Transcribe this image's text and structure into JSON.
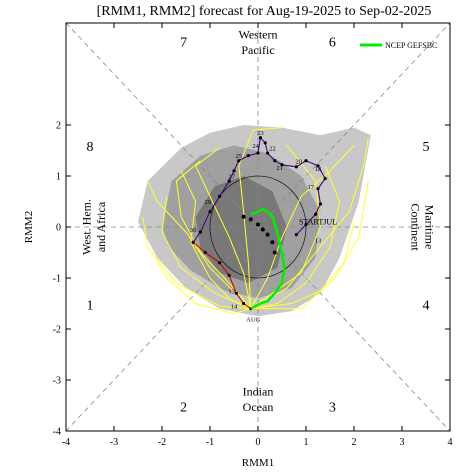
{
  "chart_data": {
    "type": "line",
    "title": "[RMM1, RMM2] forecast for Aug-19-2025 to Sep-02-2025",
    "xlabel": "RMM1",
    "ylabel": "RMM2",
    "xlim": [
      -4,
      4
    ],
    "ylim": [
      -4,
      4
    ],
    "x_ticks": [
      -4,
      -3,
      -2,
      -1,
      0,
      1,
      2,
      3,
      4
    ],
    "y_ticks": [
      -4,
      -3,
      -2,
      -1,
      0,
      1,
      2
    ],
    "grid": false,
    "legend": {
      "position": "top-right",
      "entries": [
        "NCEP GEFSBC"
      ]
    },
    "colors": {
      "outer_shade": "#c8c8c8",
      "middle_shade": "#a0a0a0",
      "inner_shade": "#787878",
      "ensemble": "#ffff33",
      "mean": "#00ee00",
      "observed_july": "#4b0082",
      "observed_august": "#cc0000",
      "dashed": "#808080"
    },
    "region_labels": [
      {
        "text": "Western",
        "x": 0,
        "y": 3.75
      },
      {
        "text": "Pacific",
        "x": 0,
        "y": 3.45
      },
      {
        "text": "Indian",
        "x": 0,
        "y": -3.25
      },
      {
        "text": "Ocean",
        "x": 0,
        "y": -3.55
      },
      {
        "text": "West. Hem.",
        "x": -3.55,
        "y": 0,
        "rotate": -90
      },
      {
        "text": "and Africa",
        "x": -3.25,
        "y": 0,
        "rotate": -90
      },
      {
        "text": "Maritime",
        "x": 3.55,
        "y": 0,
        "rotate": 90
      },
      {
        "text": "Continent",
        "x": 3.25,
        "y": 0,
        "rotate": 90
      }
    ],
    "phase_labels": [
      {
        "text": "1",
        "x": -3.5,
        "y": -1.55
      },
      {
        "text": "2",
        "x": -1.55,
        "y": -3.55
      },
      {
        "text": "3",
        "x": 1.55,
        "y": -3.55
      },
      {
        "text": "4",
        "x": 3.5,
        "y": -1.55
      },
      {
        "text": "5",
        "x": 3.5,
        "y": 1.55
      },
      {
        "text": "6",
        "x": 1.55,
        "y": 3.6
      },
      {
        "text": "7",
        "x": -1.55,
        "y": 3.6
      },
      {
        "text": "8",
        "x": -3.5,
        "y": 1.55
      }
    ],
    "shading": {
      "outer": [
        [
          -2.5,
          0.1
        ],
        [
          -2.3,
          0.9
        ],
        [
          -1.6,
          1.55
        ],
        [
          -1.0,
          1.85
        ],
        [
          -0.3,
          2.0
        ],
        [
          0.5,
          1.95
        ],
        [
          1.3,
          1.8
        ],
        [
          2.0,
          1.95
        ],
        [
          2.35,
          1.8
        ],
        [
          2.1,
          0.5
        ],
        [
          1.7,
          -0.6
        ],
        [
          1.3,
          -1.3
        ],
        [
          0.7,
          -1.65
        ],
        [
          0.0,
          -1.75
        ],
        [
          -0.8,
          -1.6
        ],
        [
          -1.5,
          -1.2
        ],
        [
          -2.1,
          -0.6
        ]
      ],
      "middle": [
        [
          -2.0,
          0.0
        ],
        [
          -1.8,
          0.9
        ],
        [
          -1.2,
          1.4
        ],
        [
          -0.5,
          1.6
        ],
        [
          0.2,
          1.45
        ],
        [
          0.9,
          1.0
        ],
        [
          1.3,
          0.3
        ],
        [
          1.2,
          -0.6
        ],
        [
          0.7,
          -1.2
        ],
        [
          0.0,
          -1.4
        ],
        [
          -0.7,
          -1.25
        ],
        [
          -1.4,
          -0.85
        ],
        [
          -1.85,
          -0.4
        ]
      ],
      "inner": [
        [
          -1.3,
          0.2
        ],
        [
          -0.9,
          0.8
        ],
        [
          -0.3,
          1.0
        ],
        [
          0.3,
          0.7
        ],
        [
          0.6,
          0.0
        ],
        [
          0.4,
          -0.8
        ],
        [
          -0.2,
          -1.1
        ],
        [
          -0.8,
          -0.9
        ],
        [
          -1.2,
          -0.4
        ]
      ]
    },
    "observed": {
      "july": {
        "points": [
          [
            0.8,
            -0.15
          ],
          [
            1.0,
            0.05
          ],
          [
            1.2,
            0.25
          ],
          [
            1.3,
            0.45
          ],
          [
            1.25,
            0.75
          ],
          [
            1.4,
            0.95
          ],
          [
            1.25,
            1.2
          ],
          [
            1.0,
            1.3
          ],
          [
            0.8,
            1.18
          ],
          [
            0.5,
            1.22
          ],
          [
            0.35,
            1.3
          ],
          [
            0.2,
            1.45
          ],
          [
            0.15,
            1.65
          ],
          [
            0.05,
            1.75
          ],
          [
            0.0,
            1.45
          ],
          [
            -0.2,
            1.4
          ],
          [
            -0.4,
            1.3
          ],
          [
            -0.5,
            1.1
          ],
          [
            -0.6,
            0.9
          ],
          [
            -0.8,
            0.6
          ],
          [
            -1.0,
            0.3
          ],
          [
            -1.2,
            -0.1
          ],
          [
            -1.35,
            -0.3
          ]
        ],
        "labels": [
          {
            "text": "STARTJUL",
            "x": 1.25,
            "y": 0.05
          },
          {
            "text": "13",
            "x": 1.25,
            "y": -0.3
          },
          {
            "text": "18",
            "x": 1.25,
            "y": 1.1
          },
          {
            "text": "17",
            "x": 1.1,
            "y": 0.75
          },
          {
            "text": "20",
            "x": 0.85,
            "y": 1.25
          },
          {
            "text": "21",
            "x": 0.45,
            "y": 1.12
          },
          {
            "text": "22",
            "x": 0.3,
            "y": 1.5
          },
          {
            "text": "23",
            "x": 0.05,
            "y": 1.8
          },
          {
            "text": "24",
            "x": -0.05,
            "y": 1.55
          },
          {
            "text": "25",
            "x": -0.4,
            "y": 1.35
          },
          {
            "text": "27",
            "x": -0.55,
            "y": 0.95
          },
          {
            "text": "29",
            "x": -1.05,
            "y": 0.45
          },
          {
            "text": "30",
            "x": -1.35,
            "y": -0.1
          }
        ]
      },
      "august": {
        "points": [
          [
            -1.35,
            -0.3
          ],
          [
            -1.1,
            -0.5
          ],
          [
            -0.8,
            -0.7
          ],
          [
            -0.6,
            -0.95
          ],
          [
            -0.45,
            -1.3
          ],
          [
            -0.3,
            -1.5
          ],
          [
            -0.15,
            -1.6
          ]
        ],
        "labels": [
          {
            "text": "13",
            "x": -0.55,
            "y": -1.3
          },
          {
            "text": "14",
            "x": -0.5,
            "y": -1.6
          },
          {
            "text": "AUG",
            "x": -0.1,
            "y": -1.85
          }
        ]
      }
    },
    "series": [
      {
        "name": "NCEP GEFSBC",
        "x": [
          -0.15,
          0.05,
          0.2,
          0.35,
          0.5,
          0.55,
          0.5,
          0.45,
          0.4,
          0.35,
          0.3,
          0.2,
          0.1,
          0.0,
          -0.15
        ],
        "y": [
          -1.6,
          -1.5,
          -1.45,
          -1.3,
          -1.1,
          -0.8,
          -0.5,
          -0.3,
          -0.1,
          0.05,
          0.2,
          0.3,
          0.35,
          0.3,
          0.25
        ]
      }
    ],
    "ensemble_paths": [
      [
        [
          -0.15,
          -1.6
        ],
        [
          -0.6,
          -1.1
        ],
        [
          -1.2,
          -0.5
        ],
        [
          -1.6,
          0.2
        ],
        [
          -1.7,
          0.9
        ],
        [
          -1.2,
          1.3
        ]
      ],
      [
        [
          -0.15,
          -1.6
        ],
        [
          -0.9,
          -1.3
        ],
        [
          -1.6,
          -0.8
        ],
        [
          -2.0,
          -0.1
        ],
        [
          -1.9,
          0.6
        ]
      ],
      [
        [
          -0.15,
          -1.6
        ],
        [
          -0.3,
          -0.9
        ],
        [
          -0.6,
          -0.2
        ],
        [
          -1.0,
          0.6
        ],
        [
          -1.3,
          1.2
        ],
        [
          -0.8,
          1.55
        ]
      ],
      [
        [
          -0.15,
          -1.6
        ],
        [
          0.4,
          -1.5
        ],
        [
          1.0,
          -1.1
        ],
        [
          1.5,
          -0.4
        ],
        [
          1.7,
          0.5
        ],
        [
          1.4,
          1.2
        ]
      ],
      [
        [
          -0.15,
          -1.6
        ],
        [
          0.6,
          -1.2
        ],
        [
          1.2,
          -0.5
        ],
        [
          1.9,
          0.3
        ],
        [
          2.2,
          1.2
        ],
        [
          2.3,
          1.75
        ]
      ],
      [
        [
          -0.15,
          -1.6
        ],
        [
          -0.8,
          -1.55
        ],
        [
          -1.7,
          -1.1
        ],
        [
          -2.3,
          -0.4
        ],
        [
          -2.4,
          0.2
        ]
      ],
      [
        [
          -0.15,
          -1.6
        ],
        [
          0.2,
          -1.0
        ],
        [
          0.5,
          -0.2
        ],
        [
          0.9,
          0.6
        ],
        [
          1.5,
          1.1
        ],
        [
          2.0,
          1.6
        ]
      ],
      [
        [
          -0.15,
          -1.6
        ],
        [
          -0.5,
          -1.7
        ],
        [
          -1.3,
          -1.5
        ],
        [
          -1.9,
          -1.0
        ],
        [
          -2.2,
          -0.5
        ]
      ],
      [
        [
          -0.15,
          -1.6
        ],
        [
          0.7,
          -1.5
        ],
        [
          1.3,
          -1.25
        ],
        [
          1.8,
          -0.7
        ],
        [
          2.0,
          0.1
        ]
      ],
      [
        [
          -0.15,
          -1.6
        ],
        [
          -0.2,
          -0.7
        ],
        [
          -0.3,
          0.3
        ],
        [
          -0.4,
          1.2
        ],
        [
          -0.1,
          1.9
        ],
        [
          0.5,
          1.95
        ]
      ],
      [
        [
          -0.15,
          -1.6
        ],
        [
          -1.0,
          -0.8
        ],
        [
          -1.5,
          -0.1
        ],
        [
          -2.1,
          0.5
        ],
        [
          -2.3,
          0.9
        ]
      ],
      [
        [
          -0.15,
          -1.6
        ],
        [
          0.3,
          -1.3
        ],
        [
          0.9,
          -0.9
        ],
        [
          1.3,
          0.0
        ],
        [
          1.2,
          0.9
        ],
        [
          0.6,
          1.6
        ]
      ],
      [
        [
          -0.15,
          -1.6
        ],
        [
          -0.6,
          -1.4
        ],
        [
          -1.0,
          -1.0
        ],
        [
          -1.4,
          -0.3
        ],
        [
          -1.3,
          0.5
        ],
        [
          -1.6,
          1.1
        ]
      ],
      [
        [
          -0.15,
          -1.6
        ],
        [
          0.9,
          -1.6
        ],
        [
          1.6,
          -1.0
        ],
        [
          2.1,
          -0.2
        ],
        [
          2.3,
          0.9
        ]
      ]
    ],
    "mean_markers": [
      [
        -0.3,
        0.2
      ],
      [
        -0.15,
        0.15
      ],
      [
        0.0,
        0.05
      ],
      [
        0.1,
        -0.05
      ],
      [
        0.2,
        -0.15
      ],
      [
        0.3,
        -0.3
      ],
      [
        0.35,
        -0.5
      ]
    ]
  }
}
